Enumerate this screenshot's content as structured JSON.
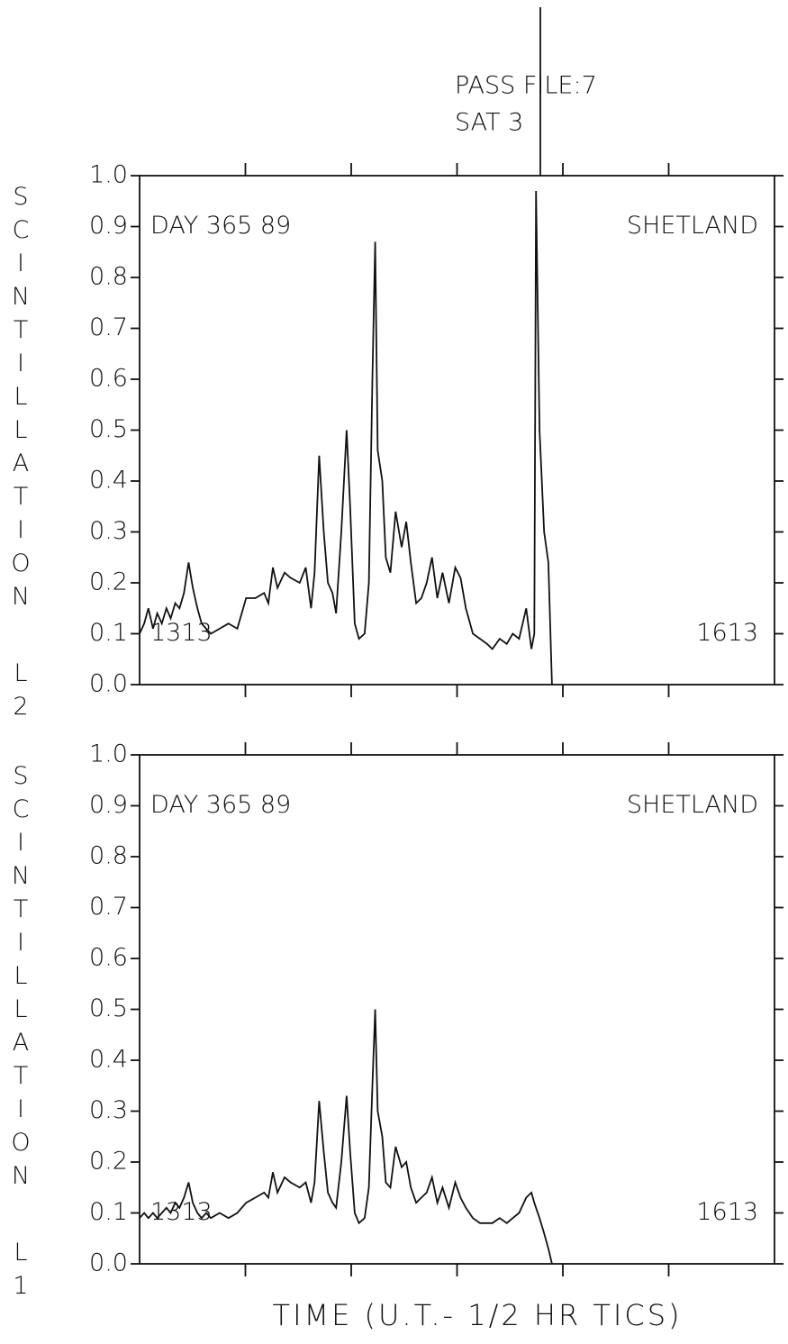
{
  "header": {
    "line1": "PASS FILE:7",
    "line2": "SAT 3"
  },
  "chart_data": [
    {
      "type": "line",
      "ylabel": "SCINTILLATION",
      "ylabel2": "L2",
      "annotations": [
        "DAY 365 89",
        "SHETLAND",
        "1313",
        "1613"
      ],
      "xlim": [
        0,
        180
      ],
      "xticks": [
        30,
        60,
        90,
        120,
        150
      ],
      "ylim": [
        0,
        1
      ],
      "yticks": [
        {
          "value": 0,
          "label": "0.0"
        },
        0.1,
        0.2,
        0.3,
        0.4,
        0.5,
        0.6,
        0.7,
        0.8,
        0.9,
        {
          "value": 1,
          "label": "1.0"
        }
      ],
      "x": [
        0,
        1.3,
        2.5,
        3.8,
        5.0,
        6.3,
        7.6,
        8.8,
        10.1,
        11.3,
        12.6,
        13.9,
        15.1,
        16.4,
        17.6,
        18.9,
        20.2,
        22.7,
        25.2,
        27.7,
        30.2,
        32.8,
        35.3,
        36.5,
        37.8,
        39.1,
        41.1,
        42.8,
        45.4,
        47.1,
        48.6,
        49.6,
        50.9,
        52.2,
        53.4,
        54.7,
        55.7,
        57.2,
        58.7,
        59.7,
        61.0,
        62.2,
        63.8,
        65.0,
        66.0,
        66.8,
        67.5,
        68.8,
        69.8,
        71.1,
        72.6,
        74.3,
        75.6,
        76.9,
        78.4,
        79.9,
        81.4,
        82.9,
        84.4,
        85.9,
        87.7,
        89.5,
        91.0,
        92.5,
        94.5,
        96.5,
        98.5,
        100.0,
        102.1,
        104.1,
        105.8,
        107.6,
        109.6,
        111.1,
        111.9,
        112.4,
        113.4,
        114.7,
        115.9,
        116.9
      ],
      "series": [
        {
          "color": "#000000",
          "values": [
            0.1,
            0.12,
            0.15,
            0.11,
            0.14,
            0.12,
            0.15,
            0.13,
            0.16,
            0.15,
            0.18,
            0.24,
            0.19,
            0.15,
            0.12,
            0.11,
            0.1,
            0.11,
            0.12,
            0.11,
            0.17,
            0.17,
            0.18,
            0.16,
            0.23,
            0.19,
            0.22,
            0.21,
            0.2,
            0.23,
            0.15,
            0.22,
            0.45,
            0.3,
            0.2,
            0.18,
            0.14,
            0.3,
            0.5,
            0.35,
            0.12,
            0.09,
            0.1,
            0.2,
            0.6,
            0.87,
            0.46,
            0.4,
            0.25,
            0.22,
            0.34,
            0.27,
            0.32,
            0.24,
            0.16,
            0.17,
            0.2,
            0.25,
            0.17,
            0.22,
            0.16,
            0.23,
            0.21,
            0.15,
            0.1,
            0.09,
            0.08,
            0.07,
            0.09,
            0.08,
            0.1,
            0.09,
            0.15,
            0.07,
            0.1,
            0.97,
            0.5,
            0.3,
            0.24,
            0
          ]
        }
      ]
    },
    {
      "type": "line",
      "ylabel": "SCINTILLATION",
      "ylabel2": "L1",
      "xlabel": "TIME (U.T.- 1/2 HR TICS)",
      "annotations": [
        "DAY 365 89",
        "SHETLAND",
        "1313",
        "1613"
      ],
      "xlim": [
        0,
        180
      ],
      "xticks": [
        30,
        60,
        90,
        120,
        150
      ],
      "ylim": [
        0,
        1
      ],
      "yticks": [
        {
          "value": 0,
          "label": "0.0"
        },
        0.1,
        0.2,
        0.3,
        0.4,
        0.5,
        0.6,
        0.7,
        0.8,
        0.9,
        {
          "value": 1,
          "label": "1.0"
        }
      ],
      "x": [
        0,
        1.3,
        2.5,
        3.8,
        5.0,
        6.3,
        7.6,
        8.8,
        10.1,
        11.3,
        12.6,
        13.9,
        15.1,
        16.4,
        17.6,
        18.9,
        20.2,
        22.7,
        25.2,
        27.7,
        30.2,
        32.8,
        35.3,
        36.5,
        37.8,
        39.1,
        41.1,
        42.8,
        45.4,
        47.1,
        48.6,
        49.6,
        50.9,
        52.2,
        53.4,
        54.7,
        55.7,
        57.2,
        58.7,
        59.7,
        61.0,
        62.2,
        63.8,
        65.0,
        66.0,
        66.8,
        67.5,
        68.8,
        69.8,
        71.1,
        72.6,
        74.3,
        75.6,
        76.9,
        78.4,
        79.9,
        81.4,
        82.9,
        84.4,
        85.9,
        87.7,
        89.5,
        91.0,
        92.5,
        94.5,
        96.5,
        98.5,
        100.0,
        102.1,
        104.1,
        105.8,
        107.6,
        109.6,
        111.1,
        111.9,
        112.4,
        113.4,
        114.7,
        115.9,
        116.9
      ],
      "series": [
        {
          "color": "#000000",
          "values": [
            0.09,
            0.1,
            0.09,
            0.1,
            0.09,
            0.1,
            0.11,
            0.1,
            0.12,
            0.11,
            0.13,
            0.16,
            0.12,
            0.1,
            0.09,
            0.1,
            0.09,
            0.1,
            0.09,
            0.1,
            0.12,
            0.13,
            0.14,
            0.13,
            0.18,
            0.14,
            0.17,
            0.16,
            0.15,
            0.16,
            0.12,
            0.16,
            0.32,
            0.22,
            0.14,
            0.12,
            0.11,
            0.2,
            0.33,
            0.22,
            0.1,
            0.08,
            0.09,
            0.15,
            0.35,
            0.5,
            0.3,
            0.25,
            0.16,
            0.15,
            0.23,
            0.19,
            0.2,
            0.15,
            0.12,
            0.13,
            0.14,
            0.17,
            0.12,
            0.15,
            0.11,
            0.16,
            0.13,
            0.11,
            0.09,
            0.08,
            0.08,
            0.08,
            0.09,
            0.08,
            0.09,
            0.1,
            0.13,
            0.14,
            0.12,
            0.11,
            0.09,
            0.06,
            0.03,
            0
          ]
        }
      ]
    }
  ]
}
